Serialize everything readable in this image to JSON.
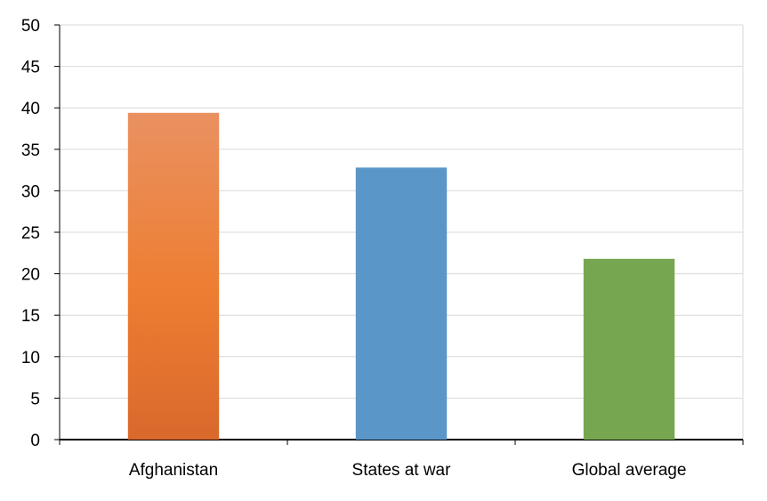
{
  "chart_data": {
    "type": "bar",
    "title": "",
    "xlabel": "",
    "ylabel": "",
    "categories": [
      "Afghanistan",
      "States at war",
      "Global average"
    ],
    "values": [
      39.4,
      32.8,
      21.8
    ],
    "colors": [
      "#E97A35",
      "#5B96C8",
      "#77A650"
    ],
    "ylim": [
      0,
      50
    ],
    "yticks": [
      "0",
      "5",
      "10",
      "15",
      "20",
      "25",
      "30",
      "35",
      "40",
      "45",
      "50"
    ],
    "grid": true,
    "legend": "none"
  }
}
